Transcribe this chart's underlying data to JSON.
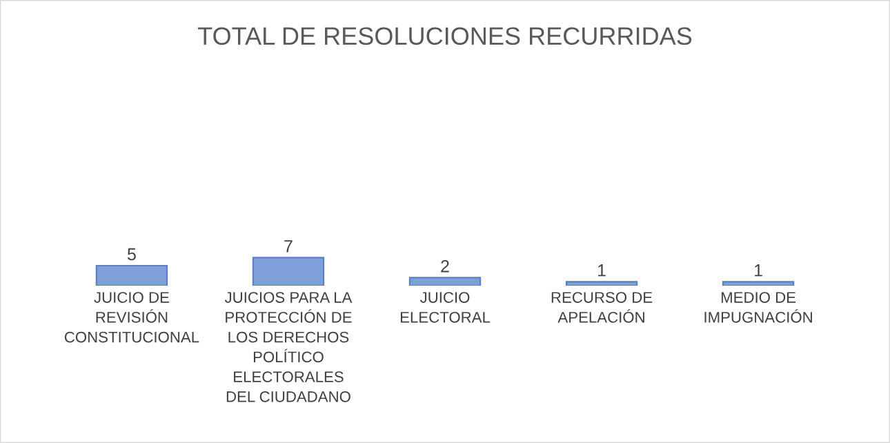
{
  "chart_data": {
    "type": "bar",
    "title": "TOTAL DE RESOLUCIONES RECURRIDAS",
    "categories": [
      "JUICIO DE REVISIÓN CONSTITUCIONAL",
      "JUICIOS PARA LA PROTECCIÓN DE LOS DERECHOS POLÍTICO ELECTORALES DEL CIUDADANO",
      "JUICIO ELECTORAL",
      "RECURSO DE APELACIÓN",
      "MEDIO DE IMPUGNACIÓN"
    ],
    "values": [
      5,
      7,
      2,
      1,
      1
    ],
    "color": "#7f9fd9",
    "data_labels": true
  }
}
